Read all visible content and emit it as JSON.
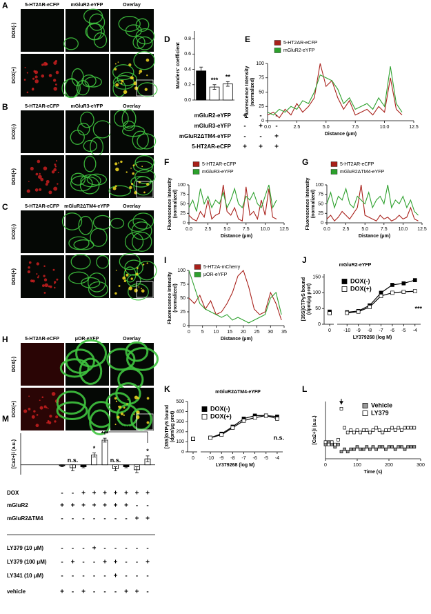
{
  "image_panels": [
    {
      "label": "A",
      "columns": [
        "5-HT2AR-eCFP",
        "mGluR2-eYFP",
        "Overlay"
      ],
      "rows": [
        "DOX(-)",
        "DOX(+)"
      ]
    },
    {
      "label": "B",
      "columns": [
        "5-HT2AR-eCFP",
        "mGluR3-eYFP",
        "Overlay"
      ],
      "rows": [
        "DOX(-)",
        "DOX(+)"
      ]
    },
    {
      "label": "C",
      "columns": [
        "5-HT2AR-eCFP",
        "mGluR2ΔTM4-eYFP",
        "Overlay"
      ],
      "rows": [
        "DOX(-)",
        "DOX(+)"
      ]
    },
    {
      "label": "H",
      "columns": [
        "5-HT2AR-eCFP",
        "μOR-eYFP",
        "Overlay"
      ],
      "rows": [
        "DOX(-)",
        "DOX(+)"
      ]
    }
  ],
  "chart_data": [
    {
      "type": "bar",
      "label": "D",
      "ylabel": [
        "Manders' coefficient"
      ],
      "values": [
        0.38,
        0.17,
        0.21
      ],
      "errors": [
        0.05,
        0.03,
        0.03
      ],
      "colors": [
        "#000000",
        "#ffffff",
        "#ffffff"
      ],
      "ylim": [
        0,
        0.9
      ],
      "yticks": [
        {
          "value": 0,
          "label": "0.0"
        },
        0.2,
        0.4,
        0.6,
        0.8
      ],
      "annotations": [
        "***",
        "**"
      ],
      "table": {
        "rows": [
          {
            "label": "mGluR2-eYFP",
            "cells": [
              "+",
              "-",
              "-"
            ]
          },
          {
            "label": "mGluR3-eYFP",
            "cells": [
              "-",
              "+",
              "-"
            ]
          },
          {
            "label": "mGluR2ΔTM4-eYFP",
            "cells": [
              "-",
              "-",
              "+"
            ]
          },
          {
            "label": "5-HT2AR-eCFP",
            "cells": [
              "+",
              "+",
              "+"
            ]
          }
        ]
      }
    },
    {
      "type": "line",
      "label": "E",
      "xlabel": "Distance (μm)",
      "ylabel": [
        "Fluorescence Intensity",
        "(normalized)"
      ],
      "x": [
        0,
        0.5,
        1,
        1.5,
        2,
        2.5,
        3,
        3.5,
        4,
        4.5,
        5,
        5.5,
        6,
        6.5,
        7,
        7.5,
        8,
        8.5,
        9,
        9.5,
        10,
        10.5,
        11,
        11.5
      ],
      "series": [
        {
          "name": "5-HT2AR-eCFP",
          "color": "#a8201a",
          "values": [
            10,
            15,
            5,
            20,
            10,
            30,
            15,
            25,
            40,
            100,
            60,
            70,
            40,
            20,
            35,
            10,
            15,
            20,
            10,
            25,
            15,
            75,
            20,
            10
          ]
        },
        {
          "name": "mGluR2-eYFP",
          "color": "#2ca02c",
          "values": [
            15,
            10,
            20,
            15,
            25,
            20,
            35,
            30,
            50,
            80,
            75,
            70,
            55,
            30,
            40,
            20,
            25,
            30,
            20,
            40,
            25,
            95,
            30,
            15
          ]
        }
      ],
      "xlim": [
        0,
        12.5
      ],
      "xticks": [
        {
          "value": 0,
          "label": "0.0"
        },
        2.5,
        {
          "value": 5,
          "label": "5.0"
        },
        7.5,
        {
          "value": 10,
          "label": "10.0"
        },
        12.5
      ],
      "ylim": [
        0,
        100
      ],
      "yticks": [
        0,
        25,
        50,
        75,
        100
      ]
    },
    {
      "type": "line",
      "label": "F",
      "xlabel": "Distance (μm)",
      "ylabel": [
        "Fluorescence Intensity",
        "(normalized)"
      ],
      "x": [
        0,
        0.5,
        1,
        1.5,
        2,
        2.5,
        3,
        3.5,
        4,
        4.5,
        5,
        5.5,
        6,
        6.5,
        7,
        7.5,
        8,
        8.5,
        9,
        9.5,
        10,
        10.5,
        11,
        11.5
      ],
      "series": [
        {
          "name": "5-HT2AR-eCFP",
          "color": "#a8201a",
          "values": [
            20,
            10,
            5,
            30,
            15,
            60,
            10,
            20,
            25,
            100,
            30,
            20,
            40,
            10,
            5,
            95,
            20,
            30,
            10,
            60,
            20,
            90,
            15,
            10
          ]
        },
        {
          "name": "mGluR3-eYFP",
          "color": "#2ca02c",
          "values": [
            40,
            60,
            30,
            90,
            50,
            70,
            40,
            60,
            50,
            80,
            40,
            60,
            90,
            50,
            40,
            70,
            60,
            80,
            50,
            40,
            70,
            100,
            40,
            60
          ]
        }
      ],
      "xlim": [
        0,
        12.5
      ],
      "xticks": [
        {
          "value": 0,
          "label": "0.0"
        },
        2.5,
        {
          "value": 5,
          "label": "5.0"
        },
        7.5,
        {
          "value": 10,
          "label": "10.0"
        },
        12.5
      ],
      "ylim": [
        0,
        100
      ],
      "yticks": [
        0,
        25,
        50,
        75,
        100
      ]
    },
    {
      "type": "line",
      "label": "G",
      "xlabel": "Distance (μm)",
      "ylabel": [
        "Fluorescence Intensity",
        "(normalized)"
      ],
      "x": [
        0,
        0.5,
        1,
        1.5,
        2,
        2.5,
        3,
        3.5,
        4,
        4.5,
        5,
        5.5,
        6,
        6.5,
        7,
        7.5,
        8,
        8.5,
        9,
        9.5,
        10,
        10.5,
        11,
        11.5,
        12
      ],
      "series": [
        {
          "name": "5-HT2AR-eCFP",
          "color": "#a8201a",
          "values": [
            10,
            20,
            5,
            15,
            30,
            20,
            10,
            25,
            40,
            100,
            20,
            15,
            10,
            5,
            20,
            10,
            15,
            5,
            10,
            20,
            10,
            15,
            40,
            10,
            5
          ]
        },
        {
          "name": "mGluR2ΔTM4-eYFP",
          "color": "#2ca02c",
          "values": [
            50,
            80,
            40,
            70,
            60,
            90,
            50,
            40,
            70,
            60,
            50,
            80,
            40,
            60,
            70,
            50,
            100,
            40,
            60,
            50,
            70,
            40,
            60,
            30,
            20
          ]
        }
      ],
      "xlim": [
        0,
        12.5
      ],
      "xticks": [
        {
          "value": 0,
          "label": "0.0"
        },
        2.5,
        {
          "value": 5,
          "label": "5.0"
        },
        7.5,
        {
          "value": 10,
          "label": "10.0"
        },
        12.5
      ],
      "ylim": [
        0,
        100
      ],
      "yticks": [
        0,
        25,
        50,
        75,
        100
      ]
    },
    {
      "type": "line",
      "label": "I",
      "xlabel": "Distance (μm)",
      "ylabel": [
        "Fluorescence Intensity",
        "(normalized)"
      ],
      "x": [
        0,
        2,
        4,
        6,
        8,
        10,
        12,
        14,
        16,
        18,
        20,
        22,
        24,
        26,
        28,
        30,
        32,
        34
      ],
      "series": [
        {
          "name": "5-HT2A-mCherry",
          "color": "#a8201a",
          "values": [
            50,
            40,
            55,
            30,
            45,
            20,
            25,
            40,
            60,
            90,
            100,
            70,
            30,
            20,
            25,
            60,
            40,
            10
          ]
        },
        {
          "name": "μOR-eYFP",
          "color": "#2ca02c",
          "values": [
            100,
            70,
            40,
            30,
            25,
            20,
            15,
            20,
            10,
            15,
            10,
            5,
            10,
            15,
            20,
            50,
            60,
            20
          ]
        }
      ],
      "xlim": [
        0,
        35
      ],
      "xticks": [
        0,
        5,
        10,
        15,
        20,
        25,
        30,
        35
      ],
      "ylim": [
        0,
        100
      ],
      "yticks": [
        0,
        25,
        50,
        75,
        100
      ]
    },
    {
      "type": "dose-response",
      "label": "J",
      "title": "mGluR2-eYFP",
      "xlabel": "LY379268 (log M)",
      "ylabel": [
        "[35S]GTPγS bound",
        "(dpm/μg prot)"
      ],
      "zero_label": "0",
      "x": [
        -10,
        -9,
        -8,
        -7,
        -6,
        -5,
        -4
      ],
      "series": [
        {
          "name": "DOX(-)",
          "color": "#000000",
          "baseline": 40,
          "values": [
            38,
            42,
            60,
            100,
            125,
            130,
            140
          ]
        },
        {
          "name": "DOX(+)",
          "color": "#ffffff",
          "baseline": 35,
          "values": [
            36,
            40,
            55,
            90,
            100,
            103,
            105
          ]
        }
      ],
      "xlim": [
        -10.5,
        -3.5
      ],
      "xticks": [
        -10,
        -9,
        -8,
        -7,
        -6,
        -5,
        -4
      ],
      "ylim": [
        0,
        160
      ],
      "yticks": [
        0,
        50,
        100,
        150
      ],
      "annotations": [
        "***"
      ]
    },
    {
      "type": "dose-response",
      "label": "K",
      "title": "mGluR2ΔTM4-eYFP",
      "xlabel": "LY379268 (log M)",
      "ylabel": [
        "[35S]GTPγS bound",
        "(dpm/μg prot)"
      ],
      "zero_label": "0",
      "x": [
        -10,
        -9,
        -8,
        -7,
        -6,
        -5,
        -4
      ],
      "series": [
        {
          "name": "DOX(-)",
          "color": "#000000",
          "baseline": 130,
          "values": [
            140,
            180,
            250,
            330,
            360,
            360,
            350
          ]
        },
        {
          "name": "DOX(+)",
          "color": "#ffffff",
          "baseline": 130,
          "values": [
            140,
            170,
            240,
            310,
            340,
            360,
            330
          ]
        }
      ],
      "xlim": [
        -10.5,
        -3.5
      ],
      "xticks": [
        -10,
        -9,
        -8,
        -7,
        -6,
        -5,
        -4
      ],
      "ylim": [
        0,
        500
      ],
      "yticks": [
        0,
        100,
        200,
        300,
        400,
        500
      ],
      "annotations": [
        "n.s."
      ]
    },
    {
      "type": "scatter",
      "label": "L",
      "xlabel": "Time (s)",
      "ylabel": [
        "[Ca2+]i (a.u.)"
      ],
      "x": [
        0,
        10,
        20,
        30,
        40,
        50,
        60,
        70,
        80,
        90,
        100,
        110,
        120,
        130,
        140,
        150,
        160,
        170,
        180,
        190,
        200,
        210,
        220,
        230,
        240,
        250,
        260,
        270,
        280
      ],
      "series": [
        {
          "name": "Vehicle",
          "color": "#999999",
          "values": [
            0,
            1,
            0,
            -1,
            0,
            -3,
            -2,
            -3,
            -2,
            -2,
            -1,
            -2,
            -2,
            -1,
            -2,
            -1,
            -2,
            -1,
            -1,
            -2,
            -1,
            -1,
            -2,
            -1,
            -1,
            -2,
            -1,
            -1,
            -1
          ]
        },
        {
          "name": "LY379",
          "color": "#ffffff",
          "values": [
            1,
            0,
            1,
            0,
            2,
            15,
            7,
            5,
            6,
            5,
            6,
            5,
            6,
            6,
            5,
            6,
            7,
            6,
            5,
            6,
            6,
            7,
            6,
            7,
            6,
            7,
            7,
            7,
            7
          ]
        }
      ],
      "xlim": [
        0,
        300
      ],
      "xticks": [
        0,
        100,
        200,
        300
      ],
      "ylim": [
        -6,
        18
      ]
    },
    {
      "type": "bar",
      "label": "M",
      "ylabel": [
        "[Ca2+]i (a.u.)"
      ],
      "values": [
        -0.5,
        -1.5,
        -1,
        5,
        12.5,
        -2,
        -1,
        -2.5,
        3
      ],
      "errors": [
        0.5,
        1.5,
        0.5,
        1,
        1,
        1,
        0.5,
        1.5,
        1.5
      ],
      "colors": [
        "#000000",
        "#ffffff",
        "#000000",
        "#ffffff",
        "#ffffff",
        "#ffffff",
        "#000000",
        "#ffffff",
        "#ffffff"
      ],
      "ylim": [
        -5,
        16
      ],
      "annotations": [
        "n.s.",
        "*",
        "***",
        "n.s.",
        "*",
        "***"
      ],
      "table": {
        "rows": [
          {
            "label": "DOX",
            "cells": [
              "-",
              "-",
              "+",
              "+",
              "+",
              "+",
              "+",
              "+",
              "+"
            ]
          },
          {
            "label": "mGluR2",
            "cells": [
              "+",
              "+",
              "+",
              "+",
              "+",
              "+",
              "+",
              "-",
              "-"
            ]
          },
          {
            "label": "mGluR2ΔTM4",
            "cells": [
              "-",
              "-",
              "-",
              "-",
              "-",
              "-",
              "-",
              "+",
              "+"
            ]
          },
          {
            "label": "LY379 (10 μM)",
            "cells": [
              "-",
              "-",
              "-",
              "+",
              "-",
              "-",
              "-",
              "-",
              "-"
            ]
          },
          {
            "label": "LY379 (100 μM)",
            "cells": [
              "-",
              "+",
              "-",
              "-",
              "+",
              "+",
              "-",
              "-",
              "+"
            ]
          },
          {
            "label": "LY341 (10 μM)",
            "cells": [
              "-",
              "-",
              "-",
              "-",
              "-",
              "+",
              "-",
              "-",
              "-"
            ]
          },
          {
            "label": "vehicle",
            "cells": [
              "+",
              "-",
              "+",
              "-",
              "-",
              "-",
              "+",
              "+",
              "-"
            ]
          }
        ]
      }
    }
  ]
}
